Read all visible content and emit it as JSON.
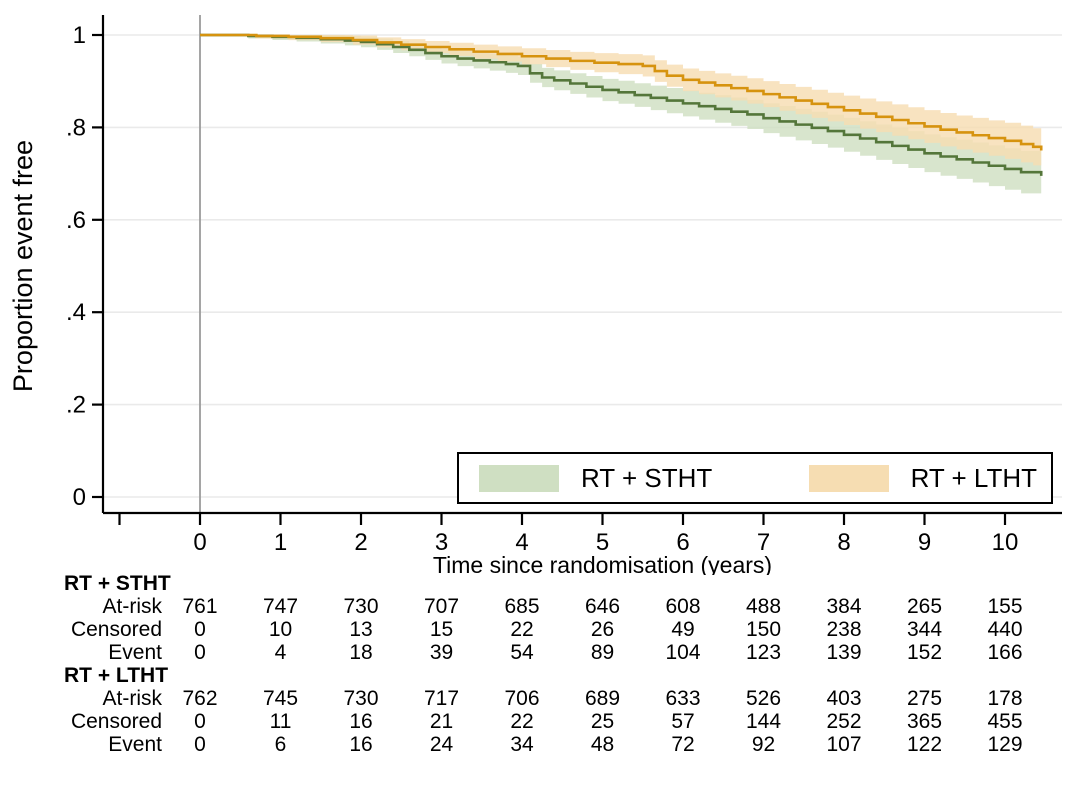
{
  "chart_data": {
    "type": "line",
    "subtype": "kaplan-meier-step-with-confidence-bands",
    "title": "",
    "xlabel": "Time since randomisation (years)",
    "ylabel": "Proportion event free",
    "xlim": [
      -1.2,
      10.7
    ],
    "ylim": [
      -0.03,
      1.04
    ],
    "xticks": [
      0,
      1,
      2,
      3,
      4,
      5,
      6,
      7,
      8,
      9,
      10
    ],
    "xticks_unlabeled": [
      -1
    ],
    "yticks": [
      0,
      0.2,
      0.4,
      0.6,
      0.8,
      1
    ],
    "ytick_labels": [
      "0",
      ".2",
      ".4",
      ".6",
      ".8",
      "1"
    ],
    "grid": "horizontal",
    "gridline_color": "#eaeaea",
    "reference_line_x": 0,
    "reference_line_color": "#9b9b9b",
    "axis_color": "#000000",
    "legend_position": "inside-bottom-right",
    "series": [
      {
        "name": "RT + STHT",
        "line_color": "#54763a",
        "band_color": "#cfdfc2",
        "band_base": 0.003,
        "band_slope": 0.0042,
        "points": [
          [
            0,
            1.0
          ],
          [
            0.6,
            0.998
          ],
          [
            0.9,
            0.996
          ],
          [
            1.2,
            0.994
          ],
          [
            1.5,
            0.991
          ],
          [
            1.8,
            0.988
          ],
          [
            2.0,
            0.985
          ],
          [
            2.2,
            0.98
          ],
          [
            2.4,
            0.974
          ],
          [
            2.6,
            0.968
          ],
          [
            2.8,
            0.961
          ],
          [
            3.0,
            0.954
          ],
          [
            3.2,
            0.949
          ],
          [
            3.4,
            0.945
          ],
          [
            3.6,
            0.941
          ],
          [
            3.8,
            0.937
          ],
          [
            3.95,
            0.933
          ],
          [
            4.1,
            0.917
          ],
          [
            4.25,
            0.908
          ],
          [
            4.4,
            0.902
          ],
          [
            4.6,
            0.895
          ],
          [
            4.8,
            0.888
          ],
          [
            5.0,
            0.881
          ],
          [
            5.2,
            0.876
          ],
          [
            5.4,
            0.87
          ],
          [
            5.6,
            0.864
          ],
          [
            5.8,
            0.858
          ],
          [
            6.0,
            0.852
          ],
          [
            6.2,
            0.846
          ],
          [
            6.4,
            0.84
          ],
          [
            6.6,
            0.834
          ],
          [
            6.8,
            0.828
          ],
          [
            7.0,
            0.82
          ],
          [
            7.2,
            0.813
          ],
          [
            7.4,
            0.806
          ],
          [
            7.6,
            0.799
          ],
          [
            7.8,
            0.792
          ],
          [
            8.0,
            0.784
          ],
          [
            8.2,
            0.776
          ],
          [
            8.4,
            0.768
          ],
          [
            8.6,
            0.76
          ],
          [
            8.8,
            0.752
          ],
          [
            9.0,
            0.744
          ],
          [
            9.2,
            0.737
          ],
          [
            9.4,
            0.731
          ],
          [
            9.6,
            0.724
          ],
          [
            9.8,
            0.717
          ],
          [
            10.0,
            0.71
          ],
          [
            10.2,
            0.703
          ],
          [
            10.45,
            0.695
          ]
        ]
      },
      {
        "name": "RT + LTHT",
        "line_color": "#d6930f",
        "band_color": "#f6ddb2",
        "band_base": 0.003,
        "band_slope": 0.0036,
        "points": [
          [
            0,
            1.0
          ],
          [
            0.7,
            0.998
          ],
          [
            1.1,
            0.996
          ],
          [
            1.5,
            0.993
          ],
          [
            1.9,
            0.989
          ],
          [
            2.2,
            0.984
          ],
          [
            2.5,
            0.979
          ],
          [
            2.8,
            0.974
          ],
          [
            3.1,
            0.969
          ],
          [
            3.4,
            0.964
          ],
          [
            3.7,
            0.959
          ],
          [
            4.0,
            0.954
          ],
          [
            4.3,
            0.949
          ],
          [
            4.6,
            0.944
          ],
          [
            4.9,
            0.94
          ],
          [
            5.2,
            0.937
          ],
          [
            5.5,
            0.933
          ],
          [
            5.65,
            0.922
          ],
          [
            5.8,
            0.912
          ],
          [
            6.0,
            0.903
          ],
          [
            6.2,
            0.897
          ],
          [
            6.4,
            0.891
          ],
          [
            6.6,
            0.885
          ],
          [
            6.8,
            0.879
          ],
          [
            7.0,
            0.872
          ],
          [
            7.2,
            0.865
          ],
          [
            7.4,
            0.858
          ],
          [
            7.6,
            0.851
          ],
          [
            7.8,
            0.844
          ],
          [
            8.0,
            0.837
          ],
          [
            8.2,
            0.83
          ],
          [
            8.4,
            0.823
          ],
          [
            8.6,
            0.816
          ],
          [
            8.8,
            0.809
          ],
          [
            9.0,
            0.802
          ],
          [
            9.2,
            0.795
          ],
          [
            9.4,
            0.789
          ],
          [
            9.6,
            0.783
          ],
          [
            9.8,
            0.777
          ],
          [
            10.0,
            0.771
          ],
          [
            10.2,
            0.764
          ],
          [
            10.35,
            0.758
          ],
          [
            10.45,
            0.75
          ]
        ]
      }
    ]
  },
  "risk_table": {
    "time_points": [
      0,
      1,
      2,
      3,
      4,
      5,
      6,
      7,
      8,
      9,
      10
    ],
    "groups": [
      {
        "name": "RT + STHT",
        "rows": [
          {
            "label": "At-risk",
            "values": [
              761,
              747,
              730,
              707,
              685,
              646,
              608,
              488,
              384,
              265,
              155
            ]
          },
          {
            "label": "Censored",
            "values": [
              0,
              10,
              13,
              15,
              22,
              26,
              49,
              150,
              238,
              344,
              440
            ]
          },
          {
            "label": "Event",
            "values": [
              0,
              4,
              18,
              39,
              54,
              89,
              104,
              123,
              139,
              152,
              166
            ]
          }
        ]
      },
      {
        "name": "RT + LTHT",
        "rows": [
          {
            "label": "At-risk",
            "values": [
              762,
              745,
              730,
              717,
              706,
              689,
              633,
              526,
              403,
              275,
              178
            ]
          },
          {
            "label": "Censored",
            "values": [
              0,
              11,
              16,
              21,
              22,
              25,
              57,
              144,
              252,
              365,
              455
            ]
          },
          {
            "label": "Event",
            "values": [
              0,
              6,
              16,
              24,
              34,
              48,
              72,
              92,
              107,
              122,
              129
            ]
          }
        ]
      }
    ]
  }
}
